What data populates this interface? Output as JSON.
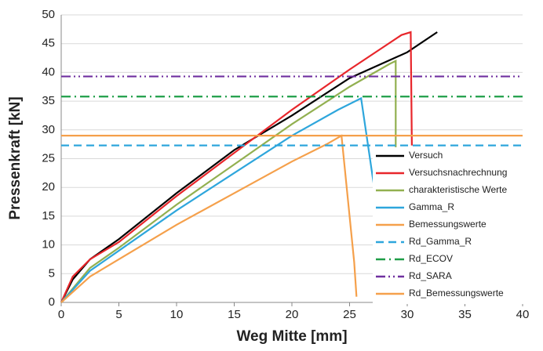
{
  "chart_data": {
    "type": "line",
    "xlabel": "Weg Mitte [mm]",
    "ylabel": "Pressenkraft [kN]",
    "xlim": [
      0,
      40
    ],
    "xticks": [
      0,
      5,
      10,
      15,
      20,
      25,
      30,
      35,
      40
    ],
    "ylim": [
      0,
      50
    ],
    "yticks": [
      0,
      5,
      10,
      15,
      20,
      25,
      30,
      35,
      40,
      45,
      50
    ],
    "grid": true,
    "legend": "lower right",
    "series": [
      {
        "name": "Versuch",
        "color": "#000000",
        "dash": "solid",
        "x": [
          0,
          1,
          2.5,
          5,
          10,
          15,
          20,
          25,
          30,
          32.6
        ],
        "values": [
          0,
          4,
          7.5,
          11,
          19,
          26.5,
          32.5,
          39,
          43.5,
          47
        ]
      },
      {
        "name": "Versuchsnachrechnung",
        "color": "#e8262b",
        "dash": "solid",
        "x": [
          0,
          1,
          2.5,
          5,
          10,
          15,
          20,
          25,
          28,
          29.5,
          30.3,
          30.4
        ],
        "values": [
          0,
          4.5,
          7.5,
          10.5,
          18.5,
          26,
          33.5,
          40.5,
          44.5,
          46.5,
          47,
          27.3
        ]
      },
      {
        "name": "charakteristische Werte",
        "color": "#92b050",
        "dash": "solid",
        "x": [
          0,
          2.5,
          5,
          10,
          15,
          20,
          25,
          28.5,
          29,
          29
        ],
        "values": [
          0,
          6,
          9.5,
          17,
          24,
          31,
          37.5,
          41.5,
          42,
          27
        ]
      },
      {
        "name": "Gamma_R",
        "color": "#2ea6dc",
        "dash": "solid",
        "x": [
          0,
          2.5,
          5,
          10,
          15,
          20,
          24,
          26,
          27.5
        ],
        "values": [
          0,
          5.5,
          9,
          16,
          22.5,
          29,
          33.5,
          35.5,
          15
        ]
      },
      {
        "name": "Bemessungswerte",
        "color": "#f5a04b",
        "dash": "solid",
        "x": [
          0,
          2.5,
          5,
          10,
          15,
          20,
          23,
          24.3,
          25.4,
          25.6
        ],
        "values": [
          0,
          4.5,
          7.5,
          13.5,
          19,
          24.5,
          27.5,
          29,
          7,
          1
        ]
      },
      {
        "name": "Rd_Gamma_R",
        "color": "#2ea6dc",
        "dash": "dash",
        "x": [
          0,
          40
        ],
        "values": [
          27.3,
          27.3
        ]
      },
      {
        "name": "Rd_ECOV",
        "color": "#1f9e48",
        "dash": "dashdot",
        "x": [
          0,
          40
        ],
        "values": [
          35.8,
          35.8
        ]
      },
      {
        "name": "Rd_SARA",
        "color": "#7030a0",
        "dash": "dashdotdot",
        "x": [
          0,
          40
        ],
        "values": [
          39.3,
          39.3
        ]
      },
      {
        "name": "Rd_Bemessungswerte",
        "color": "#f5a04b",
        "dash": "solid",
        "x": [
          0,
          40
        ],
        "values": [
          29,
          29
        ]
      }
    ]
  }
}
